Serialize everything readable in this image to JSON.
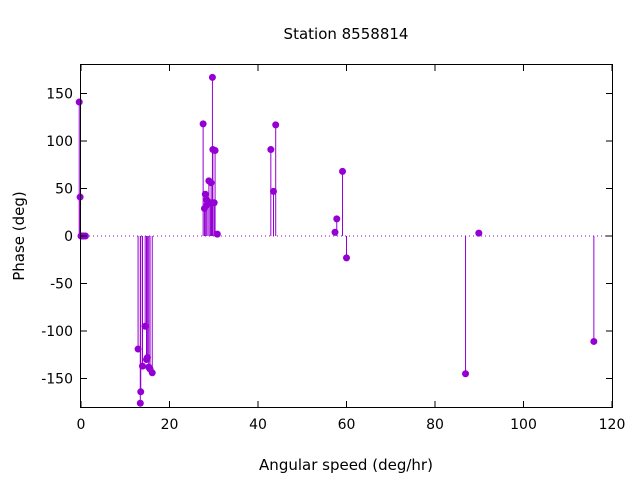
{
  "chart_data": {
    "type": "scatter",
    "style": "impulses-with-points",
    "title": "Station 8558814",
    "xlabel": "Angular speed (deg/hr)",
    "ylabel": "Phase (deg)",
    "xlim": [
      0,
      120
    ],
    "ylim": [
      -180,
      180
    ],
    "xticks": [
      0,
      20,
      40,
      60,
      80,
      100,
      120
    ],
    "yticks": [
      -150,
      -100,
      -50,
      0,
      50,
      100,
      150
    ],
    "zero_line": "dotted",
    "grid": false,
    "series": [
      {
        "color": "#9400d3",
        "points": [
          [
            -0.4,
            141
          ],
          [
            -0.2,
            41
          ],
          [
            0.0,
            0
          ],
          [
            0.3,
            0
          ],
          [
            0.6,
            0
          ],
          [
            1.0,
            0
          ],
          [
            12.9,
            -119
          ],
          [
            13.4,
            -176
          ],
          [
            13.5,
            -164
          ],
          [
            13.9,
            -137
          ],
          [
            14.5,
            -95
          ],
          [
            14.8,
            -130
          ],
          [
            15.0,
            -128
          ],
          [
            15.3,
            -138
          ],
          [
            15.6,
            -140
          ],
          [
            16.1,
            -144
          ],
          [
            27.6,
            118
          ],
          [
            27.9,
            29
          ],
          [
            28.1,
            44
          ],
          [
            28.4,
            38
          ],
          [
            28.5,
            33
          ],
          [
            28.9,
            58
          ],
          [
            29.2,
            35
          ],
          [
            29.4,
            56
          ],
          [
            29.5,
            35
          ],
          [
            29.7,
            167
          ],
          [
            29.8,
            91
          ],
          [
            30.1,
            35
          ],
          [
            30.3,
            90
          ],
          [
            30.8,
            2
          ],
          [
            42.9,
            91
          ],
          [
            43.5,
            47
          ],
          [
            44.0,
            117
          ],
          [
            57.4,
            4
          ],
          [
            57.8,
            18
          ],
          [
            59.1,
            68
          ],
          [
            60.0,
            -23
          ],
          [
            86.9,
            -145
          ],
          [
            89.9,
            3
          ],
          [
            115.9,
            -111
          ]
        ]
      }
    ]
  }
}
